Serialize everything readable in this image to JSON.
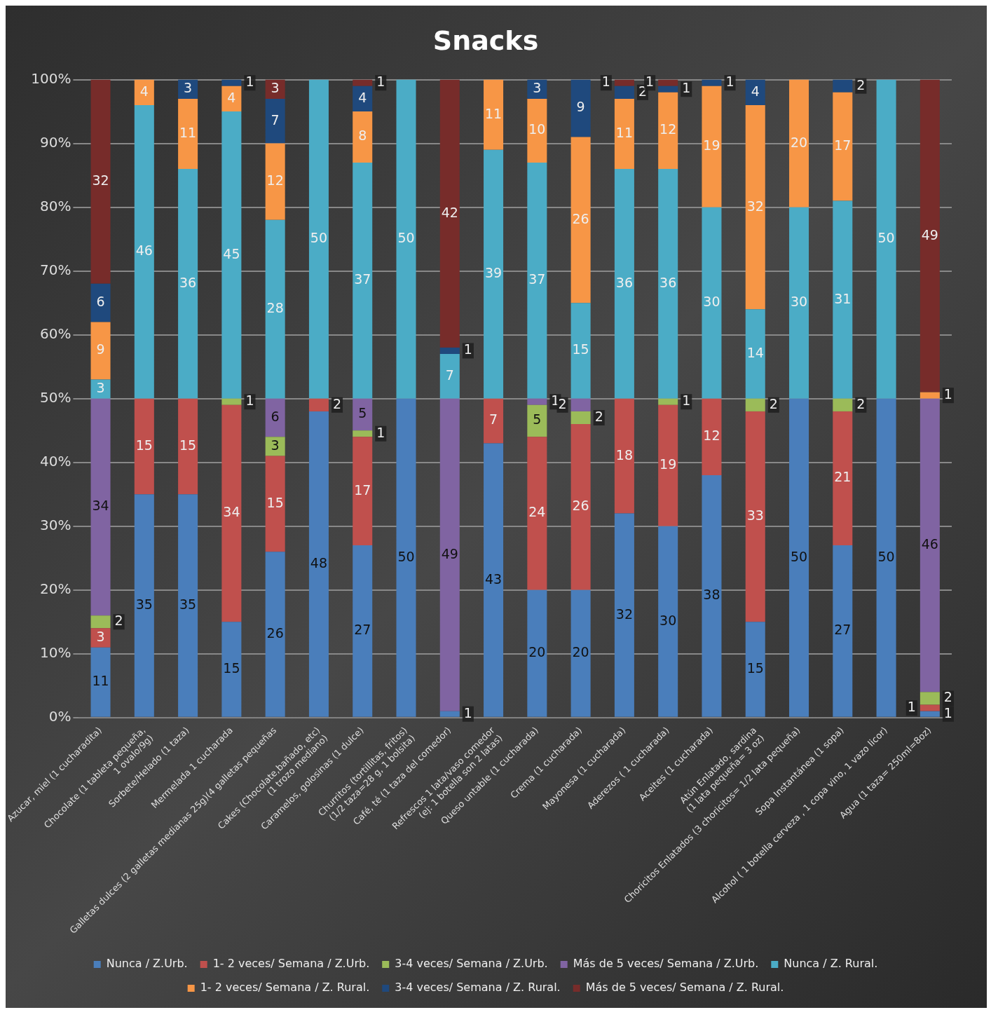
{
  "chart_data": {
    "type": "bar",
    "title": "Snacks",
    "stacked": true,
    "data_labels": true,
    "grid": "y",
    "legend": "bottom",
    "categories": [
      "Azucar, miel (1 cucharadita)",
      "Chocolate (1 tableta pequeña,\n1 ovalo/9g)",
      "Sorbete/Helado (1 taza)",
      "Mermelada 1 cucharada",
      "Galletas dulces (2 galletas medianas 25g)(4 galletas pequeñas",
      "Cakes (Chocolate,bañado, etc)\n(1 trozo mediano)",
      "Caramelos, golosinas (1 dulce)",
      "Churritos (tortillitas, fritos)\n(1/2 taza=28 g, 1 bolsita)",
      "Café, té (1 taza del comedor)",
      "Refrescos 1 lata/vaso comedor\n(ej: 1 botella son 2 latas)",
      "Queso untable (1 cucharada)",
      "Crema (1 cucharada)",
      "Mayonesa (1 cucharada)",
      "Aderezos ( 1 cucharada)",
      "Aceites (1 cucharada)",
      "Atún Enlatado, sardina\n(1 lata pequeña= 3 oz)",
      "Choricitos Enlatados (3 choricitos= 1/2 lata pequeña)",
      "Sopa Instantánea (1 sopa)",
      "Alcohol ( 1 botella cerveza , 1 copa vino, 1 vazo licor)",
      "Agua (1 taza= 250ml=8oz)"
    ],
    "ylim": [
      0,
      100
    ],
    "yticks": [
      {
        "value": 0,
        "label": "0%"
      },
      {
        "value": 10,
        "label": "10%"
      },
      {
        "value": 20,
        "label": "20%"
      },
      {
        "value": 30,
        "label": "30%"
      },
      {
        "value": 40,
        "label": "40%"
      },
      {
        "value": 50,
        "label": "50%"
      },
      {
        "value": 60,
        "label": "60%"
      },
      {
        "value": 70,
        "label": "70%"
      },
      {
        "value": 80,
        "label": "80%"
      },
      {
        "value": 90,
        "label": "90%"
      },
      {
        "value": 100,
        "label": "100%"
      }
    ],
    "series": [
      {
        "name": "Nunca / Z.Urb.",
        "color": "#4a7ebb",
        "values": [
          11,
          35,
          35,
          15,
          26,
          48,
          27,
          50,
          1,
          43,
          20,
          20,
          32,
          30,
          38,
          15,
          50,
          27,
          50,
          1
        ]
      },
      {
        "name": "1- 2 veces/ Semana / Z.Urb.",
        "color": "#c0504d",
        "values": [
          3,
          15,
          15,
          34,
          15,
          2,
          17,
          null,
          null,
          7,
          24,
          26,
          18,
          19,
          12,
          33,
          null,
          21,
          null,
          1
        ]
      },
      {
        "name": "3-4 veces/ Semana / Z.Urb.",
        "color": "#9bbb59",
        "values": [
          2,
          null,
          null,
          1,
          3,
          null,
          1,
          null,
          null,
          null,
          5,
          2,
          null,
          1,
          null,
          2,
          null,
          2,
          null,
          2
        ]
      },
      {
        "name": "Más de 5 veces/ Semana / Z.Urb.",
        "color": "#8064a2",
        "values": [
          34,
          null,
          null,
          null,
          6,
          null,
          5,
          null,
          49,
          null,
          1,
          2,
          null,
          null,
          null,
          null,
          null,
          null,
          null,
          46
        ]
      },
      {
        "name": "Nunca / Z. Rural.",
        "color": "#4bacc6",
        "values": [
          3,
          46,
          36,
          45,
          28,
          50,
          37,
          50,
          7,
          39,
          37,
          15,
          36,
          36,
          30,
          14,
          30,
          31,
          50,
          null
        ]
      },
      {
        "name": "1- 2 veces/ Semana / Z. Rural.",
        "color": "#f79646",
        "values": [
          9,
          4,
          11,
          4,
          12,
          null,
          8,
          null,
          null,
          11,
          10,
          26,
          11,
          12,
          19,
          32,
          20,
          17,
          null,
          1
        ]
      },
      {
        "name": "3-4 veces/ Semana / Z. Rural.",
        "color": "#1f497d",
        "values": [
          6,
          null,
          3,
          1,
          7,
          null,
          4,
          null,
          1,
          null,
          3,
          9,
          2,
          1,
          1,
          4,
          null,
          2,
          null,
          null
        ]
      },
      {
        "name": "Más de 5 veces/ Semana / Z. Rural.",
        "color": "#772c2a",
        "values": [
          32,
          null,
          null,
          null,
          3,
          null,
          1,
          null,
          42,
          null,
          null,
          null,
          1,
          1,
          null,
          null,
          null,
          null,
          null,
          49
        ]
      }
    ]
  }
}
